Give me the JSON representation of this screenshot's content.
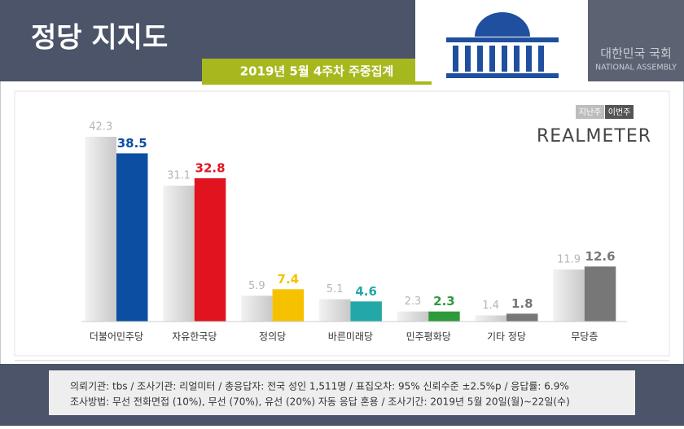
{
  "chart_data": {
    "type": "bar",
    "title": "정당 지지도",
    "subtitle": "2019년 5월 4주차 주중집계",
    "logo_text": [
      "대한민국 국회",
      "NATIONAL ASSEMBLY"
    ],
    "brand": "REALMETER",
    "categories": [
      "더불어민주당",
      "자유한국당",
      "정의당",
      "바른미래당",
      "민주평화당",
      "기타 정당",
      "무당층"
    ],
    "series": [
      {
        "name": "지난주",
        "color": "#cfcfcf",
        "values": [
          42.3,
          31.1,
          5.9,
          5.1,
          2.3,
          1.4,
          11.9
        ]
      },
      {
        "name": "이번주",
        "color": "#555555",
        "colors": [
          "#0b4ea2",
          "#e0131f",
          "#f6c200",
          "#23a7a7",
          "#2e9b3a",
          "#777777",
          "#777777"
        ],
        "values": [
          38.5,
          32.8,
          7.4,
          4.6,
          2.3,
          1.8,
          12.6
        ]
      }
    ],
    "footer": [
      "의뢰기관:  tbs  / 조사기관:  리얼미터  / 총응답자:  전국 성인 1,511명  / 표집오차:  95% 신뢰수준 ±2.5%p  / 응답률:  6.9%",
      "조사방법:  무선 전화면접 (10%), 무선 (70%), 유선 (20%) 자동 응답 혼용  / 조사기간:  2019년 5월 20일(월)~22일(수)"
    ]
  }
}
